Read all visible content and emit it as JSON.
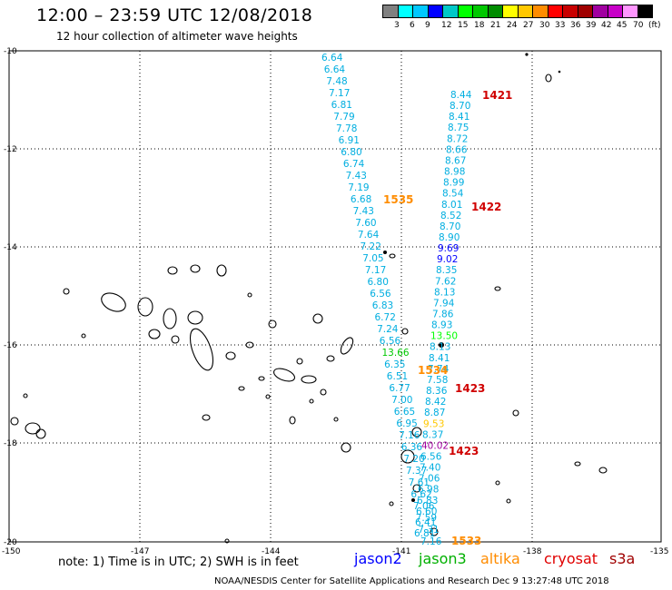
{
  "header": {
    "title": "12:00 – 23:59 UTC 12/08/2018",
    "subtitle": "12 hour collection of altimeter wave heights"
  },
  "colorbar": {
    "colors": [
      "#808080",
      "#00ffff",
      "#00c8ff",
      "#0000ff",
      "#00c8c8",
      "#00ff00",
      "#00c800",
      "#008c00",
      "#ffff00",
      "#ffc800",
      "#ff8c00",
      "#ff0000",
      "#c80000",
      "#a00000",
      "#a000a0",
      "#c800c8",
      "#ff96ff",
      "#000000"
    ],
    "labels": [
      "3",
      "6",
      "9",
      "12",
      "15",
      "18",
      "21",
      "24",
      "27",
      "30",
      "33",
      "36",
      "39",
      "42",
      "45",
      "70",
      "(ft)"
    ],
    "label_x": [
      438,
      455,
      472,
      490,
      508,
      526,
      544,
      562,
      580,
      598,
      615,
      632,
      649,
      666,
      683,
      701,
      718
    ]
  },
  "axes": {
    "lat_labels": [
      "-10",
      "-12",
      "-14",
      "-16",
      "-18",
      "-20"
    ],
    "lon_labels": [
      "-150",
      "-147",
      "-144",
      "-141",
      "-138",
      "-135"
    ]
  },
  "tracks": [
    {
      "name": "track-west",
      "color": "#00aee0",
      "values": [
        "6.64",
        "6.64",
        "7.48",
        "7.17",
        "6.81",
        "7.79",
        "7.78",
        "6.91",
        "6.80",
        "6.74",
        "7.43",
        "7.19",
        "6.68",
        "7.43",
        "7.60",
        "7.64",
        "7.22",
        "7.05",
        "7.17",
        "6.80",
        "6.56",
        "6.83",
        "6.72",
        "7.24",
        "6.56",
        "13.66",
        "6.35",
        "6.51",
        "6.77",
        "7.00",
        "6.65",
        "6.95",
        "7.16",
        "6.36",
        "7.20",
        "7.37",
        "7.61",
        "6.62",
        "7.06",
        "7.59",
        "7.31",
        "7.16"
      ],
      "colors": [
        "",
        "",
        "",
        "",
        "",
        "",
        "",
        "",
        "",
        "",
        "",
        "",
        "",
        "",
        "",
        "",
        "",
        "",
        "",
        "",
        "",
        "",
        "",
        "",
        "",
        "#00c800",
        "",
        "",
        "",
        "",
        "",
        "",
        "",
        "",
        "",
        "",
        "",
        "",
        "",
        "",
        "",
        ""
      ]
    },
    {
      "name": "track-east",
      "color": "#00aee0",
      "values": [
        "8.44",
        "8.70",
        "8.41",
        "8.75",
        "8.72",
        "8.66",
        "8.67",
        "8.98",
        "8.99",
        "8.54",
        "8.01",
        "8.52",
        "8.70",
        "8.90",
        "9.69",
        "9.02",
        "8.35",
        "7.62",
        "8.13",
        "7.94",
        "7.86",
        "8.93",
        "13.50",
        "8.13",
        "8.41",
        "7.74",
        "7.58",
        "8.36",
        "8.42",
        "8.87",
        "9.53",
        "8.37",
        "40.02",
        "6.56",
        "7.40",
        "7.06",
        "6.98",
        "6.83",
        "6.60",
        "6.41",
        "6.81"
      ],
      "colors": [
        "",
        "",
        "",
        "",
        "",
        "",
        "",
        "",
        "",
        "",
        "",
        "",
        "",
        "",
        "#0000ff",
        "#0000ff",
        "",
        "",
        "",
        "",
        "",
        "",
        "#00ff00",
        "",
        "",
        "",
        "",
        "",
        "",
        "",
        "#ffc800",
        "",
        "#a000a0",
        "",
        "",
        "",
        "",
        "",
        "",
        "",
        ""
      ]
    }
  ],
  "pass_labels": [
    {
      "text": "1421",
      "color": "#d00000"
    },
    {
      "text": "1422",
      "color": "#d00000"
    },
    {
      "text": "1535",
      "color": "#ff8c00"
    },
    {
      "text": "1534",
      "color": "#ff8c00"
    },
    {
      "text": "1423",
      "color": "#d00000"
    },
    {
      "text": "1423",
      "color": "#d00000"
    },
    {
      "text": "1533",
      "color": "#ff8c00"
    }
  ],
  "footer": {
    "note": "note:  1) Time is in UTC;  2) SWH is in feet",
    "legend": [
      {
        "text": "jason2",
        "color": "#0000ff"
      },
      {
        "text": "jason3",
        "color": "#00b000"
      },
      {
        "text": "altika",
        "color": "#ff8c00"
      },
      {
        "text": "cryosat",
        "color": "#e00000"
      },
      {
        "text": "s3a",
        "color": "#a00000"
      }
    ],
    "credit": "NOAA/NESDIS Center for Satellite Applications and Research     Dec  9 13:27:48 UTC 2018"
  }
}
